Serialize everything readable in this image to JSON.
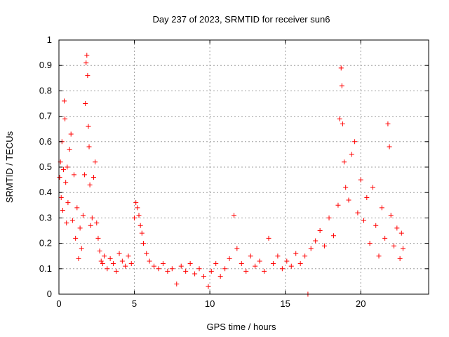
{
  "chart_data": {
    "type": "scatter",
    "title": "Day 237 of 2023, SRMTID for receiver sun6",
    "xlabel": "GPS time / hours",
    "ylabel": "SRMTID / TECUs",
    "xlim": [
      0,
      24.5
    ],
    "ylim": [
      0,
      1
    ],
    "x_ticks": [
      0,
      5,
      10,
      15,
      20
    ],
    "x_tick_labels": [
      "0",
      "5",
      "10",
      "15",
      "20"
    ],
    "y_ticks": [
      0,
      0.1,
      0.2,
      0.3,
      0.4,
      0.5,
      0.6,
      0.7,
      0.8,
      0.9,
      1
    ],
    "y_tick_labels": [
      "0",
      "0.1",
      "0.2",
      "0.3",
      "0.4",
      "0.5",
      "0.6",
      "0.7",
      "0.8",
      "0.9",
      "1"
    ],
    "grid": true,
    "marker": "+",
    "color": "#ff0000",
    "series": [
      {
        "name": "SRMTID",
        "points": [
          [
            0.05,
            0.46
          ],
          [
            0.1,
            0.52
          ],
          [
            0.15,
            0.38
          ],
          [
            0.2,
            0.6
          ],
          [
            0.25,
            0.33
          ],
          [
            0.3,
            0.49
          ],
          [
            0.35,
            0.76
          ],
          [
            0.4,
            0.69
          ],
          [
            0.45,
            0.44
          ],
          [
            0.5,
            0.28
          ],
          [
            0.55,
            0.5
          ],
          [
            0.6,
            0.36
          ],
          [
            0.7,
            0.57
          ],
          [
            0.8,
            0.63
          ],
          [
            0.9,
            0.29
          ],
          [
            1.0,
            0.47
          ],
          [
            1.1,
            0.22
          ],
          [
            1.2,
            0.34
          ],
          [
            1.3,
            0.14
          ],
          [
            1.4,
            0.26
          ],
          [
            1.5,
            0.18
          ],
          [
            1.6,
            0.31
          ],
          [
            1.7,
            0.47
          ],
          [
            1.75,
            0.75
          ],
          [
            1.8,
            0.91
          ],
          [
            1.85,
            0.94
          ],
          [
            1.9,
            0.86
          ],
          [
            1.95,
            0.66
          ],
          [
            2.0,
            0.58
          ],
          [
            2.05,
            0.43
          ],
          [
            2.1,
            0.27
          ],
          [
            2.2,
            0.3
          ],
          [
            2.3,
            0.46
          ],
          [
            2.4,
            0.52
          ],
          [
            2.5,
            0.28
          ],
          [
            2.6,
            0.22
          ],
          [
            2.7,
            0.17
          ],
          [
            2.8,
            0.13
          ],
          [
            2.9,
            0.12
          ],
          [
            3.0,
            0.15
          ],
          [
            3.2,
            0.1
          ],
          [
            3.4,
            0.14
          ],
          [
            3.6,
            0.12
          ],
          [
            3.8,
            0.09
          ],
          [
            4.0,
            0.16
          ],
          [
            4.2,
            0.13
          ],
          [
            4.4,
            0.11
          ],
          [
            4.6,
            0.15
          ],
          [
            4.8,
            0.12
          ],
          [
            5.0,
            0.3
          ],
          [
            5.1,
            0.36
          ],
          [
            5.2,
            0.34
          ],
          [
            5.3,
            0.31
          ],
          [
            5.4,
            0.27
          ],
          [
            5.5,
            0.24
          ],
          [
            5.6,
            0.2
          ],
          [
            5.8,
            0.16
          ],
          [
            6.0,
            0.13
          ],
          [
            6.3,
            0.11
          ],
          [
            6.6,
            0.1
          ],
          [
            6.9,
            0.12
          ],
          [
            7.2,
            0.09
          ],
          [
            7.5,
            0.1
          ],
          [
            7.8,
            0.04
          ],
          [
            8.1,
            0.11
          ],
          [
            8.4,
            0.09
          ],
          [
            8.7,
            0.12
          ],
          [
            9.0,
            0.08
          ],
          [
            9.3,
            0.1
          ],
          [
            9.6,
            0.07
          ],
          [
            9.9,
            0.03
          ],
          [
            10.1,
            0.09
          ],
          [
            10.4,
            0.12
          ],
          [
            10.7,
            0.07
          ],
          [
            11.0,
            0.1
          ],
          [
            11.3,
            0.14
          ],
          [
            11.6,
            0.31
          ],
          [
            11.8,
            0.18
          ],
          [
            12.1,
            0.12
          ],
          [
            12.4,
            0.09
          ],
          [
            12.7,
            0.15
          ],
          [
            13.0,
            0.11
          ],
          [
            13.3,
            0.13
          ],
          [
            13.6,
            0.09
          ],
          [
            13.9,
            0.22
          ],
          [
            14.2,
            0.12
          ],
          [
            14.5,
            0.15
          ],
          [
            14.8,
            0.1
          ],
          [
            15.1,
            0.13
          ],
          [
            15.4,
            0.11
          ],
          [
            15.7,
            0.16
          ],
          [
            16.0,
            0.12
          ],
          [
            16.3,
            0.15
          ],
          [
            16.5,
            0.0
          ],
          [
            16.7,
            0.18
          ],
          [
            17.0,
            0.21
          ],
          [
            17.3,
            0.25
          ],
          [
            17.6,
            0.19
          ],
          [
            17.9,
            0.3
          ],
          [
            18.2,
            0.23
          ],
          [
            18.5,
            0.35
          ],
          [
            18.6,
            0.69
          ],
          [
            18.7,
            0.89
          ],
          [
            18.75,
            0.82
          ],
          [
            18.8,
            0.67
          ],
          [
            18.9,
            0.52
          ],
          [
            19.0,
            0.42
          ],
          [
            19.2,
            0.37
          ],
          [
            19.4,
            0.55
          ],
          [
            19.6,
            0.6
          ],
          [
            19.8,
            0.32
          ],
          [
            20.0,
            0.45
          ],
          [
            20.2,
            0.29
          ],
          [
            20.4,
            0.38
          ],
          [
            20.6,
            0.2
          ],
          [
            20.8,
            0.42
          ],
          [
            21.0,
            0.27
          ],
          [
            21.2,
            0.15
          ],
          [
            21.4,
            0.34
          ],
          [
            21.6,
            0.22
          ],
          [
            21.8,
            0.67
          ],
          [
            21.9,
            0.58
          ],
          [
            22.0,
            0.31
          ],
          [
            22.2,
            0.19
          ],
          [
            22.4,
            0.26
          ],
          [
            22.6,
            0.14
          ],
          [
            22.7,
            0.24
          ],
          [
            22.8,
            0.18
          ]
        ]
      }
    ]
  }
}
